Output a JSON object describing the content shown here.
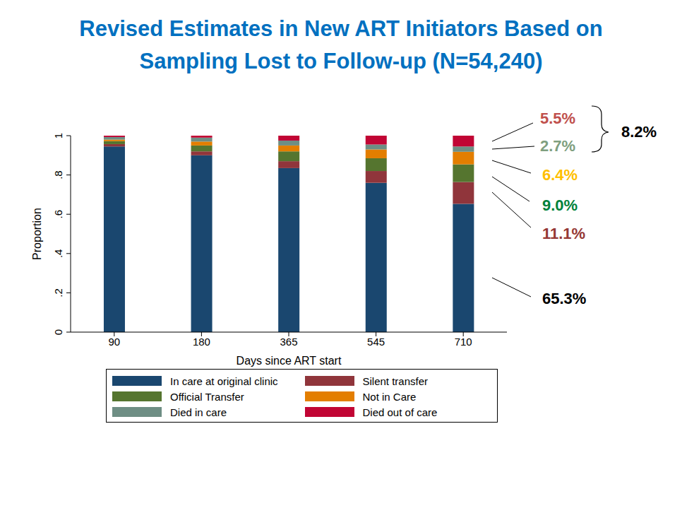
{
  "chart_data": {
    "type": "bar",
    "stacked": true,
    "title": [
      "Revised Estimates in New ART Initiators Based on",
      "Sampling Lost to Follow-up (N=54,240)"
    ],
    "x_label": "Days since ART start",
    "y_label": "Proportion",
    "categories": [
      "90",
      "180",
      "365",
      "545",
      "710"
    ],
    "series": [
      {
        "name": "In care at original clinic",
        "color": "#1a476f",
        "values": [
          0.945,
          0.9,
          0.835,
          0.76,
          0.653
        ]
      },
      {
        "name": "Silent transfer",
        "color": "#90353b",
        "values": [
          0.012,
          0.02,
          0.035,
          0.06,
          0.111
        ]
      },
      {
        "name": "Official Transfer",
        "color": "#55752f",
        "values": [
          0.015,
          0.03,
          0.05,
          0.065,
          0.09
        ]
      },
      {
        "name": "Not in Care",
        "color": "#e37e00",
        "values": [
          0.008,
          0.02,
          0.03,
          0.045,
          0.064
        ]
      },
      {
        "name": "Died in care",
        "color": "#6e8e84",
        "values": [
          0.013,
          0.02,
          0.025,
          0.025,
          0.027
        ]
      },
      {
        "name": "Died out of care",
        "color": "#c10534",
        "values": [
          0.007,
          0.01,
          0.025,
          0.045,
          0.055
        ]
      }
    ],
    "ylim": [
      0,
      1
    ],
    "yticks": [
      0,
      {
        "value": 0.2,
        "label": ".2"
      },
      {
        "value": 0.4,
        "label": ".4"
      },
      {
        "value": 0.6,
        "label": ".6"
      },
      {
        "value": 0.8,
        "label": ".8"
      },
      1
    ],
    "grid": false,
    "legend": "bottom",
    "annotations": [
      {
        "text": "5.5%",
        "color": "#c0504d"
      },
      {
        "text": "2.7%",
        "color": "#7f9f7f"
      },
      {
        "text": "6.4%",
        "color": "#ffc000"
      },
      {
        "text": "9.0%",
        "color": "#00823b"
      },
      {
        "text": "11.1%",
        "color": "#953735"
      },
      {
        "text": "65.3%",
        "color": "#000000"
      }
    ],
    "bracket": {
      "text": "8.2%",
      "color": "#000000"
    }
  }
}
